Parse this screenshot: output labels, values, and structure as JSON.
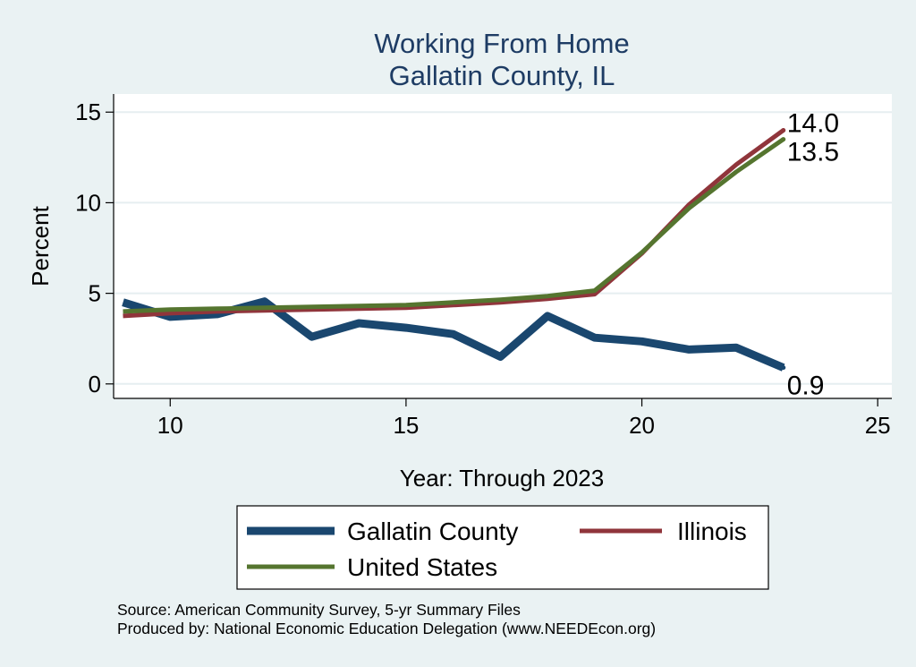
{
  "chart_data": {
    "type": "line",
    "title": "Working From Home",
    "subtitle": "Gallatin County, IL",
    "xlabel": "Year: Through 2023",
    "ylabel": "Percent",
    "xlim": [
      8.8,
      25.3
    ],
    "ylim": [
      -0.8,
      16
    ],
    "xticks": [
      10,
      15,
      20,
      25
    ],
    "yticks": [
      0,
      5,
      10,
      15
    ],
    "grid": true,
    "legend_position": "bottom",
    "x": [
      9,
      10,
      11,
      12,
      13,
      14,
      15,
      16,
      17,
      18,
      19,
      20,
      21,
      22,
      23
    ],
    "series": [
      {
        "name": "Gallatin County",
        "color": "#1a476f",
        "values": [
          4.5,
          3.7,
          3.85,
          4.55,
          2.6,
          3.35,
          3.1,
          2.75,
          1.5,
          3.75,
          2.55,
          2.35,
          1.9,
          2.0,
          0.9
        ],
        "end_label": "0.9"
      },
      {
        "name": "Illinois",
        "color": "#90353b",
        "values": [
          3.75,
          3.9,
          4.0,
          4.05,
          4.1,
          4.15,
          4.2,
          4.35,
          4.5,
          4.7,
          4.95,
          7.2,
          9.9,
          12.1,
          14.0
        ],
        "end_label": "14.0"
      },
      {
        "name": "United States",
        "color": "#55752f",
        "values": [
          4.0,
          4.1,
          4.15,
          4.2,
          4.25,
          4.3,
          4.35,
          4.5,
          4.65,
          4.85,
          5.15,
          7.25,
          9.7,
          11.7,
          13.5
        ],
        "end_label": "13.5"
      }
    ]
  },
  "footer": {
    "source": "Source: American Community Survey, 5-yr Summary Files",
    "producer": "Produced by: National Economic Education Delegation (www.NEEDEcon.org)"
  }
}
